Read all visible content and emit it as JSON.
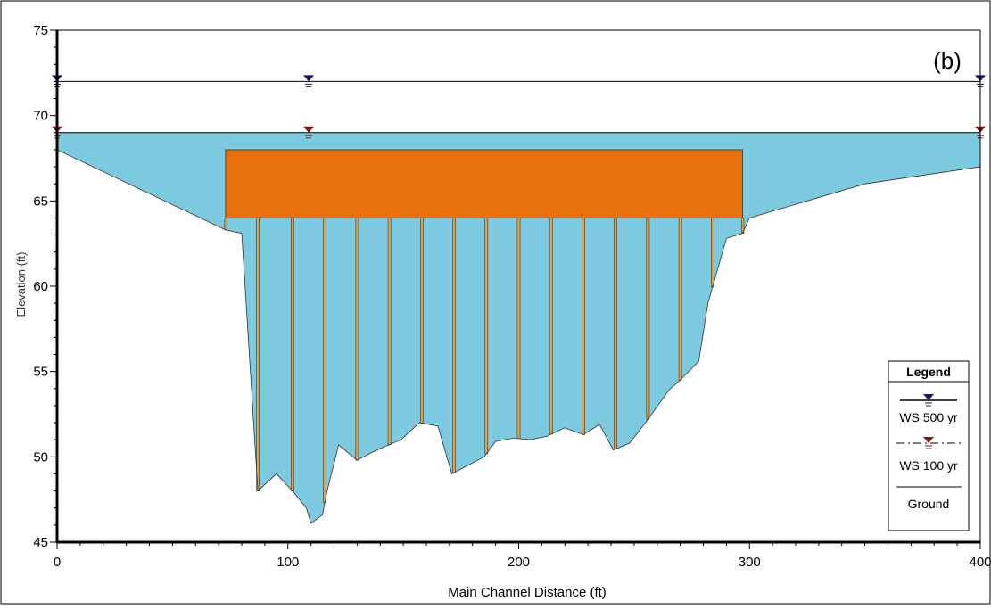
{
  "chart_data": {
    "type": "area",
    "panel_label": "(b)",
    "xlabel": "Main Channel Distance (ft)",
    "ylabel": "Elevation (ft)",
    "xlim": [
      0,
      400
    ],
    "ylim": [
      45,
      75
    ],
    "x_ticks": [
      0,
      100,
      200,
      300,
      400
    ],
    "y_ticks": [
      45,
      50,
      55,
      60,
      65,
      70,
      75
    ],
    "legend": {
      "title": "Legend",
      "position": "bottom-right",
      "items": [
        {
          "label": "WS 500 yr",
          "style": "solid",
          "marker": "inverted-triangle",
          "color": "#1a1a5e"
        },
        {
          "label": "WS 100 yr",
          "style": "dash-dot",
          "marker": "inverted-triangle",
          "color": "#7a1a1a"
        },
        {
          "label": "Ground",
          "style": "solid",
          "color": "#000000"
        }
      ]
    },
    "series": [
      {
        "name": "WS 500 yr",
        "elevation": 72.0,
        "marker_x": [
          0,
          109,
          400
        ]
      },
      {
        "name": "WS 100 yr",
        "elevation": 69.0,
        "marker_x": [
          0,
          109,
          400
        ]
      }
    ],
    "ground": [
      [
        0,
        68.0
      ],
      [
        73,
        63.3
      ],
      [
        80,
        63.1
      ],
      [
        87,
        48.0
      ],
      [
        95,
        49.0
      ],
      [
        102,
        48.0
      ],
      [
        108,
        47.0
      ],
      [
        110,
        46.1
      ],
      [
        115,
        46.6
      ],
      [
        117,
        48.0
      ],
      [
        122,
        50.7
      ],
      [
        130,
        49.8
      ],
      [
        137,
        50.3
      ],
      [
        142,
        50.6
      ],
      [
        149,
        51.0
      ],
      [
        157,
        52.0
      ],
      [
        165,
        51.8
      ],
      [
        171,
        49.0
      ],
      [
        178,
        49.5
      ],
      [
        185,
        50.0
      ],
      [
        190,
        50.9
      ],
      [
        198,
        51.1
      ],
      [
        205,
        51.0
      ],
      [
        212,
        51.2
      ],
      [
        220,
        51.7
      ],
      [
        228,
        51.3
      ],
      [
        235,
        51.9
      ],
      [
        241,
        50.4
      ],
      [
        248,
        50.8
      ],
      [
        255,
        52.0
      ],
      [
        265,
        53.9
      ],
      [
        270,
        54.5
      ],
      [
        278,
        55.6
      ],
      [
        282,
        59.0
      ],
      [
        290,
        62.8
      ],
      [
        297,
        63.1
      ],
      [
        300,
        64.0
      ],
      [
        350,
        66.0
      ],
      [
        400,
        67.0
      ]
    ],
    "bridge_deck": {
      "x_start": 73,
      "x_end": 297,
      "low_chord": 64.0,
      "high_chord": 68.0,
      "color": "#e8700f"
    },
    "piers_x": [
      87,
      102,
      116,
      130,
      144,
      158,
      172,
      186,
      200,
      214,
      228,
      242,
      256,
      270,
      284
    ],
    "pier_width_ft": 1.2,
    "colors": {
      "water": "#7ccadf",
      "deck": "#e8700f",
      "pier": "#e8a040",
      "ws500": "#1a1a5e",
      "ws100": "#7a1a1a"
    }
  }
}
